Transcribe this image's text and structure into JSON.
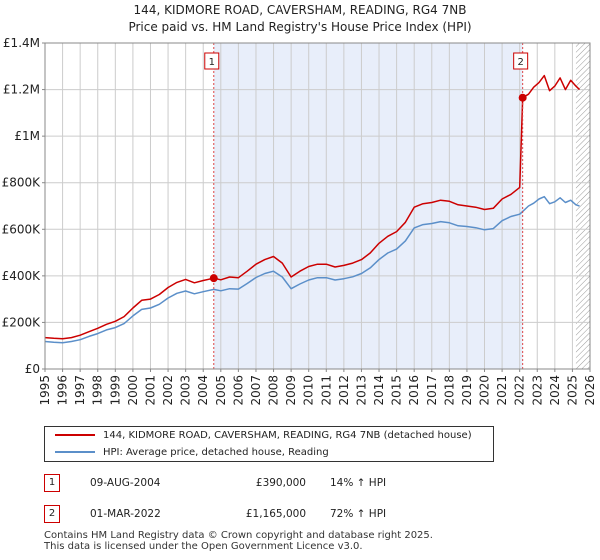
{
  "chart_data": {
    "type": "line",
    "title": "144, KIDMORE ROAD, CAVERSHAM, READING, RG4 7NB",
    "subtitle": "Price paid vs. HM Land Registry's House Price Index (HPI)",
    "xlim": [
      1995,
      2026
    ],
    "ylim": [
      0,
      1400000
    ],
    "x_ticks": [
      "1995",
      "1996",
      "1997",
      "1998",
      "1999",
      "2000",
      "2001",
      "2002",
      "2003",
      "2004",
      "2005",
      "2006",
      "2007",
      "2008",
      "2009",
      "2010",
      "2011",
      "2012",
      "2013",
      "2014",
      "2015",
      "2016",
      "2017",
      "2018",
      "2019",
      "2020",
      "2021",
      "2022",
      "2023",
      "2024",
      "2025",
      "2026"
    ],
    "y_ticks": [
      {
        "value": 0,
        "label": "£0"
      },
      {
        "value": 200000,
        "label": "£200K"
      },
      {
        "value": 400000,
        "label": "£400K"
      },
      {
        "value": 600000,
        "label": "£600K"
      },
      {
        "value": 800000,
        "label": "£800K"
      },
      {
        "value": 1000000,
        "label": "£1M"
      },
      {
        "value": 1200000,
        "label": "£1.2M"
      },
      {
        "value": 1400000,
        "label": "£1.4M"
      }
    ],
    "grid": true,
    "shaded_period": [
      2004.6,
      2022.17
    ],
    "future_hatch_from": 2025.2,
    "series": [
      {
        "name": "144, KIDMORE ROAD, CAVERSHAM, READING, RG4 7NB (detached house)",
        "color": "#cc0000",
        "x": [
          1995,
          1995.5,
          1996,
          1996.5,
          1997,
          1997.5,
          1998,
          1998.5,
          1999,
          1999.5,
          2000,
          2000.5,
          2001,
          2001.5,
          2002,
          2002.5,
          2003,
          2003.5,
          2004,
          2004.6,
          2005,
          2005.5,
          2006,
          2006.5,
          2007,
          2007.5,
          2008,
          2008.5,
          2009,
          2009.5,
          2010,
          2010.5,
          2011,
          2011.5,
          2012,
          2012.5,
          2013,
          2013.5,
          2014,
          2014.5,
          2015,
          2015.5,
          2016,
          2016.5,
          2017,
          2017.5,
          2018,
          2018.5,
          2019,
          2019.5,
          2020,
          2020.5,
          2021,
          2021.5,
          2022.0,
          2022.17,
          2022.5,
          2022.8,
          2023.1,
          2023.4,
          2023.7,
          2024,
          2024.3,
          2024.6,
          2024.9,
          2025.2,
          2025.4
        ],
        "values": [
          135000,
          132000,
          130000,
          135000,
          145000,
          160000,
          175000,
          192000,
          205000,
          225000,
          262000,
          295000,
          300000,
          320000,
          350000,
          372000,
          385000,
          370000,
          380000,
          390000,
          383000,
          395000,
          392000,
          420000,
          450000,
          470000,
          483000,
          455000,
          395000,
          420000,
          440000,
          450000,
          450000,
          438000,
          445000,
          455000,
          470000,
          498000,
          540000,
          570000,
          590000,
          630000,
          695000,
          710000,
          715000,
          725000,
          720000,
          705000,
          700000,
          695000,
          685000,
          690000,
          730000,
          750000,
          780000,
          1165000,
          1180000,
          1210000,
          1230000,
          1260000,
          1195000,
          1215000,
          1250000,
          1200000,
          1240000,
          1215000,
          1200000
        ]
      },
      {
        "name": "HPI: Average price, detached house, Reading",
        "color": "#5b8fc9",
        "x": [
          1995,
          1995.5,
          1996,
          1996.5,
          1997,
          1997.5,
          1998,
          1998.5,
          1999,
          1999.5,
          2000,
          2000.5,
          2001,
          2001.5,
          2002,
          2002.5,
          2003,
          2003.5,
          2004,
          2004.6,
          2005,
          2005.5,
          2006,
          2006.5,
          2007,
          2007.5,
          2008,
          2008.5,
          2009,
          2009.5,
          2010,
          2010.5,
          2011,
          2011.5,
          2012,
          2012.5,
          2013,
          2013.5,
          2014,
          2014.5,
          2015,
          2015.5,
          2016,
          2016.5,
          2017,
          2017.5,
          2018,
          2018.5,
          2019,
          2019.5,
          2020,
          2020.5,
          2021,
          2021.5,
          2022.0,
          2022.17,
          2022.5,
          2022.8,
          2023.1,
          2023.4,
          2023.7,
          2024,
          2024.3,
          2024.6,
          2024.9,
          2025.2,
          2025.4
        ],
        "values": [
          118000,
          115000,
          113000,
          118000,
          126000,
          140000,
          152000,
          168000,
          178000,
          195000,
          228000,
          256000,
          262000,
          278000,
          305000,
          325000,
          335000,
          323000,
          332000,
          342000,
          336000,
          345000,
          343000,
          367000,
          393000,
          410000,
          420000,
          395000,
          345000,
          365000,
          382000,
          392000,
          392000,
          382000,
          388000,
          396000,
          410000,
          434000,
          470000,
          498000,
          515000,
          550000,
          606000,
          620000,
          625000,
          633000,
          628000,
          615000,
          612000,
          607000,
          598000,
          603000,
          637000,
          655000,
          665000,
          677000,
          700000,
          712000,
          730000,
          740000,
          710000,
          718000,
          735000,
          715000,
          725000,
          705000,
          700000
        ]
      }
    ],
    "sales": [
      {
        "n": "1",
        "x": 2004.6,
        "value": 390000,
        "date": "09-AUG-2004",
        "price": "£390,000",
        "hpi": "14% ↑ HPI"
      },
      {
        "n": "2",
        "x": 2022.17,
        "value": 1165000,
        "date": "01-MAR-2022",
        "price": "£1,165,000",
        "hpi": "72% ↑ HPI"
      }
    ]
  },
  "legend": {
    "property": "144, KIDMORE ROAD, CAVERSHAM, READING, RG4 7NB (detached house)",
    "hpi": "HPI: Average price, detached house, Reading"
  },
  "footer": {
    "line1": "Contains HM Land Registry data © Crown copyright and database right 2025.",
    "line2": "This data is licensed under the Open Government Licence v3.0."
  },
  "colors": {
    "property": "#cc0000",
    "hpi": "#5b8fc9",
    "shade": "#e8eefa",
    "grid": "#cccccc"
  }
}
